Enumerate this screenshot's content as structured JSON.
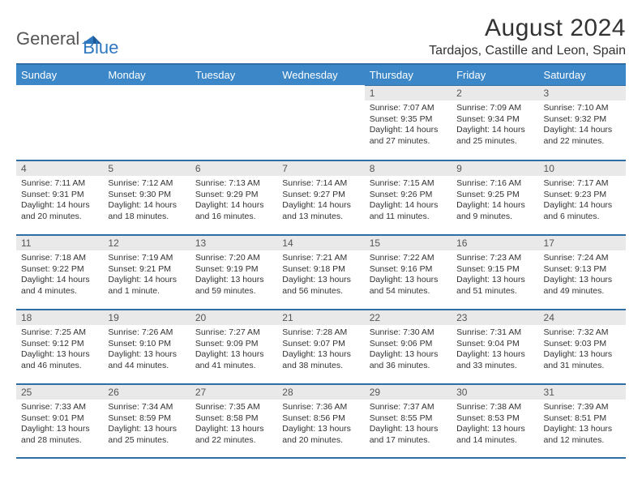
{
  "logo": {
    "word1": "General",
    "word2": "Blue"
  },
  "title": "August 2024",
  "location": "Tardajos, Castille and Leon, Spain",
  "colors": {
    "header_bg": "#3b87c8",
    "header_text": "#ffffff",
    "rule": "#2f6ea3",
    "daynum_bg": "#e9e9e9",
    "body_text": "#333333",
    "logo_gray": "#555555",
    "logo_blue": "#2f78bf"
  },
  "weekdays": [
    "Sunday",
    "Monday",
    "Tuesday",
    "Wednesday",
    "Thursday",
    "Friday",
    "Saturday"
  ],
  "weeks": [
    [
      null,
      null,
      null,
      null,
      {
        "n": "1",
        "sunrise": "7:07 AM",
        "sunset": "9:35 PM",
        "day1": "Daylight: 14 hours",
        "day2": "and 27 minutes."
      },
      {
        "n": "2",
        "sunrise": "7:09 AM",
        "sunset": "9:34 PM",
        "day1": "Daylight: 14 hours",
        "day2": "and 25 minutes."
      },
      {
        "n": "3",
        "sunrise": "7:10 AM",
        "sunset": "9:32 PM",
        "day1": "Daylight: 14 hours",
        "day2": "and 22 minutes."
      }
    ],
    [
      {
        "n": "4",
        "sunrise": "7:11 AM",
        "sunset": "9:31 PM",
        "day1": "Daylight: 14 hours",
        "day2": "and 20 minutes."
      },
      {
        "n": "5",
        "sunrise": "7:12 AM",
        "sunset": "9:30 PM",
        "day1": "Daylight: 14 hours",
        "day2": "and 18 minutes."
      },
      {
        "n": "6",
        "sunrise": "7:13 AM",
        "sunset": "9:29 PM",
        "day1": "Daylight: 14 hours",
        "day2": "and 16 minutes."
      },
      {
        "n": "7",
        "sunrise": "7:14 AM",
        "sunset": "9:27 PM",
        "day1": "Daylight: 14 hours",
        "day2": "and 13 minutes."
      },
      {
        "n": "8",
        "sunrise": "7:15 AM",
        "sunset": "9:26 PM",
        "day1": "Daylight: 14 hours",
        "day2": "and 11 minutes."
      },
      {
        "n": "9",
        "sunrise": "7:16 AM",
        "sunset": "9:25 PM",
        "day1": "Daylight: 14 hours",
        "day2": "and 9 minutes."
      },
      {
        "n": "10",
        "sunrise": "7:17 AM",
        "sunset": "9:23 PM",
        "day1": "Daylight: 14 hours",
        "day2": "and 6 minutes."
      }
    ],
    [
      {
        "n": "11",
        "sunrise": "7:18 AM",
        "sunset": "9:22 PM",
        "day1": "Daylight: 14 hours",
        "day2": "and 4 minutes."
      },
      {
        "n": "12",
        "sunrise": "7:19 AM",
        "sunset": "9:21 PM",
        "day1": "Daylight: 14 hours",
        "day2": "and 1 minute."
      },
      {
        "n": "13",
        "sunrise": "7:20 AM",
        "sunset": "9:19 PM",
        "day1": "Daylight: 13 hours",
        "day2": "and 59 minutes."
      },
      {
        "n": "14",
        "sunrise": "7:21 AM",
        "sunset": "9:18 PM",
        "day1": "Daylight: 13 hours",
        "day2": "and 56 minutes."
      },
      {
        "n": "15",
        "sunrise": "7:22 AM",
        "sunset": "9:16 PM",
        "day1": "Daylight: 13 hours",
        "day2": "and 54 minutes."
      },
      {
        "n": "16",
        "sunrise": "7:23 AM",
        "sunset": "9:15 PM",
        "day1": "Daylight: 13 hours",
        "day2": "and 51 minutes."
      },
      {
        "n": "17",
        "sunrise": "7:24 AM",
        "sunset": "9:13 PM",
        "day1": "Daylight: 13 hours",
        "day2": "and 49 minutes."
      }
    ],
    [
      {
        "n": "18",
        "sunrise": "7:25 AM",
        "sunset": "9:12 PM",
        "day1": "Daylight: 13 hours",
        "day2": "and 46 minutes."
      },
      {
        "n": "19",
        "sunrise": "7:26 AM",
        "sunset": "9:10 PM",
        "day1": "Daylight: 13 hours",
        "day2": "and 44 minutes."
      },
      {
        "n": "20",
        "sunrise": "7:27 AM",
        "sunset": "9:09 PM",
        "day1": "Daylight: 13 hours",
        "day2": "and 41 minutes."
      },
      {
        "n": "21",
        "sunrise": "7:28 AM",
        "sunset": "9:07 PM",
        "day1": "Daylight: 13 hours",
        "day2": "and 38 minutes."
      },
      {
        "n": "22",
        "sunrise": "7:30 AM",
        "sunset": "9:06 PM",
        "day1": "Daylight: 13 hours",
        "day2": "and 36 minutes."
      },
      {
        "n": "23",
        "sunrise": "7:31 AM",
        "sunset": "9:04 PM",
        "day1": "Daylight: 13 hours",
        "day2": "and 33 minutes."
      },
      {
        "n": "24",
        "sunrise": "7:32 AM",
        "sunset": "9:03 PM",
        "day1": "Daylight: 13 hours",
        "day2": "and 31 minutes."
      }
    ],
    [
      {
        "n": "25",
        "sunrise": "7:33 AM",
        "sunset": "9:01 PM",
        "day1": "Daylight: 13 hours",
        "day2": "and 28 minutes."
      },
      {
        "n": "26",
        "sunrise": "7:34 AM",
        "sunset": "8:59 PM",
        "day1": "Daylight: 13 hours",
        "day2": "and 25 minutes."
      },
      {
        "n": "27",
        "sunrise": "7:35 AM",
        "sunset": "8:58 PM",
        "day1": "Daylight: 13 hours",
        "day2": "and 22 minutes."
      },
      {
        "n": "28",
        "sunrise": "7:36 AM",
        "sunset": "8:56 PM",
        "day1": "Daylight: 13 hours",
        "day2": "and 20 minutes."
      },
      {
        "n": "29",
        "sunrise": "7:37 AM",
        "sunset": "8:55 PM",
        "day1": "Daylight: 13 hours",
        "day2": "and 17 minutes."
      },
      {
        "n": "30",
        "sunrise": "7:38 AM",
        "sunset": "8:53 PM",
        "day1": "Daylight: 13 hours",
        "day2": "and 14 minutes."
      },
      {
        "n": "31",
        "sunrise": "7:39 AM",
        "sunset": "8:51 PM",
        "day1": "Daylight: 13 hours",
        "day2": "and 12 minutes."
      }
    ]
  ]
}
